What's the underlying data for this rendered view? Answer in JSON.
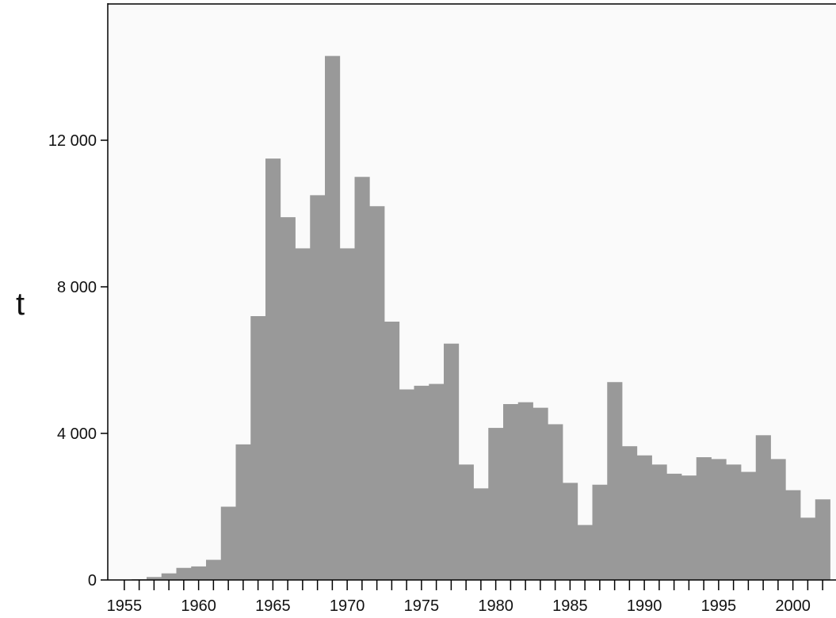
{
  "chart_data": {
    "type": "bar",
    "ylabel": "t",
    "xlabel": "",
    "title": "",
    "ylim": [
      0,
      16000
    ],
    "xlim": [
      1954.5,
      2002.5
    ],
    "yticks": [
      {
        "value": 0,
        "label": "0"
      },
      {
        "value": 4000,
        "label": "4 000"
      },
      {
        "value": 8000,
        "label": "8 000"
      },
      {
        "value": 12000,
        "label": "12 000"
      }
    ],
    "xticks": [
      {
        "value": 1955,
        "label": "1955"
      },
      {
        "value": 1960,
        "label": "1960"
      },
      {
        "value": 1965,
        "label": "1965"
      },
      {
        "value": 1970,
        "label": "1970"
      },
      {
        "value": 1975,
        "label": "1975"
      },
      {
        "value": 1980,
        "label": "1980"
      },
      {
        "value": 1985,
        "label": "1985"
      },
      {
        "value": 1990,
        "label": "1990"
      },
      {
        "value": 1995,
        "label": "1995"
      },
      {
        "value": 2000,
        "label": "2000"
      }
    ],
    "grid": false,
    "legend": "none",
    "bar_color": "#999999",
    "plot_background": "#fafafa",
    "x": [
      1955,
      1956,
      1957,
      1958,
      1959,
      1960,
      1961,
      1962,
      1963,
      1964,
      1965,
      1966,
      1967,
      1968,
      1969,
      1970,
      1971,
      1972,
      1973,
      1974,
      1975,
      1976,
      1977,
      1978,
      1979,
      1980,
      1981,
      1982,
      1983,
      1984,
      1985,
      1986,
      1987,
      1988,
      1989,
      1990,
      1991,
      1992,
      1993,
      1994,
      1995,
      1996,
      1997,
      1998,
      1999,
      2000,
      2001,
      2002
    ],
    "values": [
      0,
      20,
      80,
      180,
      330,
      370,
      550,
      2000,
      3700,
      7200,
      11500,
      9900,
      9050,
      10500,
      14300,
      9050,
      11000,
      10200,
      7050,
      5200,
      5300,
      5350,
      6450,
      3150,
      2500,
      4150,
      4800,
      4850,
      4700,
      4250,
      2650,
      1500,
      2600,
      5400,
      3650,
      3400,
      3150,
      2900,
      2850,
      3350,
      3300,
      3150,
      2950,
      3950,
      3300,
      2450,
      1700,
      2200
    ]
  }
}
